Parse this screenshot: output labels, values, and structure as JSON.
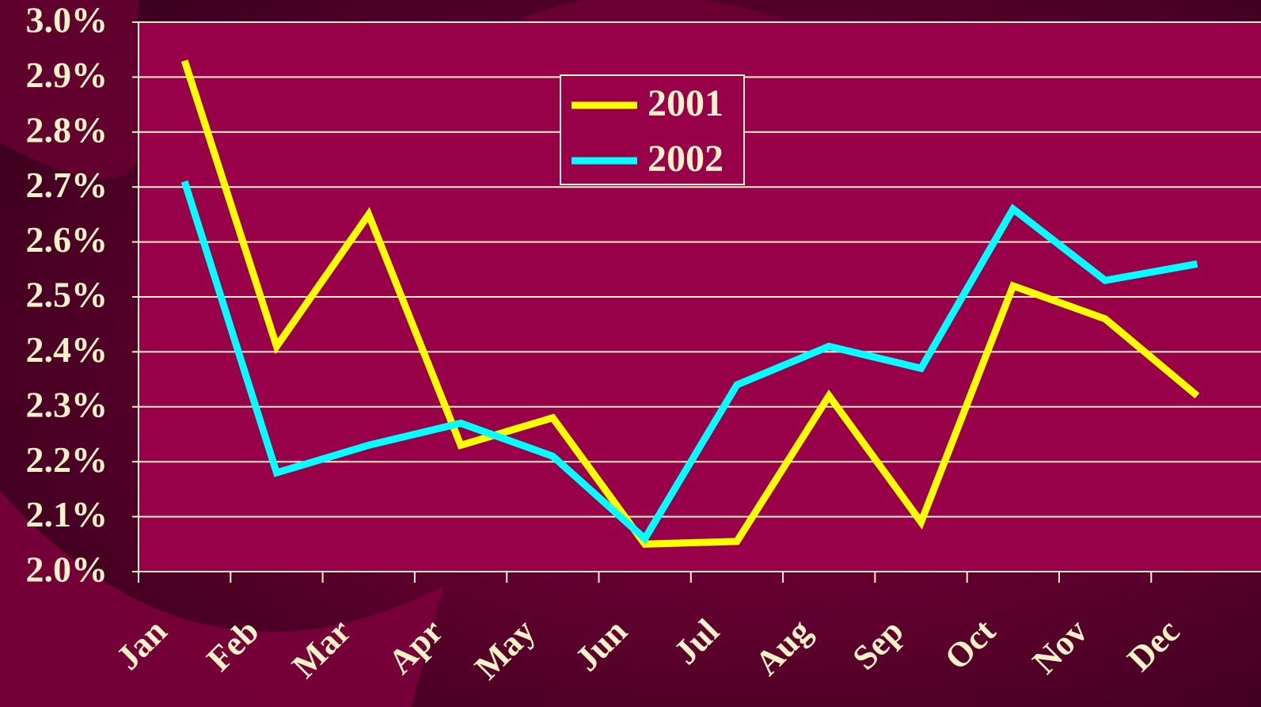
{
  "chart_data": {
    "type": "line",
    "categories": [
      "Jan",
      "Feb",
      "Mar",
      "Apr",
      "May",
      "Jun",
      "Jul",
      "Aug",
      "Sep",
      "Oct",
      "Nov",
      "Dec"
    ],
    "series": [
      {
        "name": "2001",
        "color": "#ffff00",
        "values": [
          2.93,
          2.41,
          2.65,
          2.23,
          2.28,
          2.05,
          2.055,
          2.32,
          2.09,
          2.52,
          2.46,
          2.32
        ]
      },
      {
        "name": "2002",
        "color": "#00ffff",
        "values": [
          2.71,
          2.18,
          2.23,
          2.27,
          2.21,
          2.06,
          2.34,
          2.41,
          2.37,
          2.66,
          2.53,
          2.56
        ]
      }
    ],
    "ylim": [
      2.0,
      3.0
    ],
    "yticks": [
      {
        "value": 2.0,
        "label": "2.0%"
      },
      {
        "value": 2.1,
        "label": "2.1%"
      },
      {
        "value": 2.2,
        "label": "2.2%"
      },
      {
        "value": 2.3,
        "label": "2.3%"
      },
      {
        "value": 2.4,
        "label": "2.4%"
      },
      {
        "value": 2.5,
        "label": "2.5%"
      },
      {
        "value": 2.6,
        "label": "2.6%"
      },
      {
        "value": 2.7,
        "label": "2.7%"
      },
      {
        "value": 2.8,
        "label": "2.8%"
      },
      {
        "value": 2.9,
        "label": "2.9%"
      },
      {
        "value": 3.0,
        "label": "3.0%"
      }
    ],
    "grid": true
  }
}
